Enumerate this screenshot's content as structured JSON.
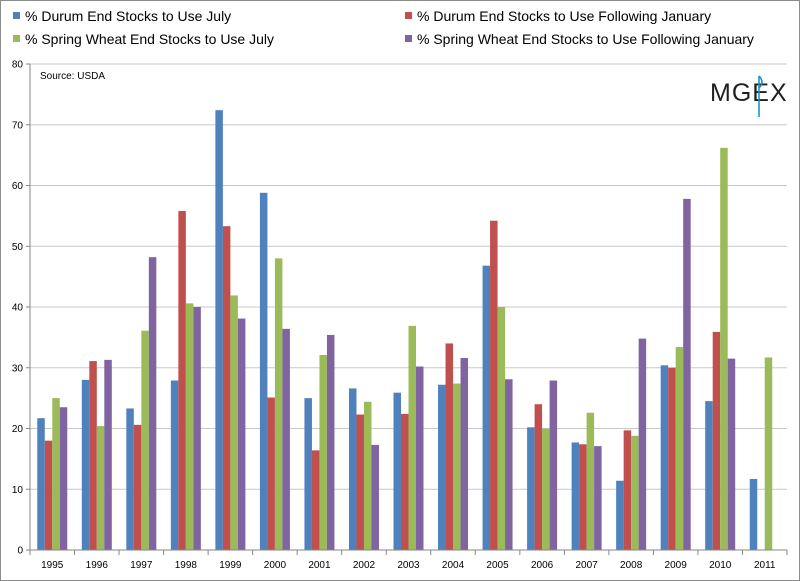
{
  "chart_data": {
    "type": "bar",
    "categories": [
      "1995",
      "1996",
      "1997",
      "1998",
      "1999",
      "2000",
      "2001",
      "2002",
      "2003",
      "2004",
      "2005",
      "2006",
      "2007",
      "2008",
      "2009",
      "2010",
      "2011"
    ],
    "series": [
      {
        "name": "% Durum End Stocks to Use July",
        "color": "#4f81bd",
        "values": [
          21.7,
          28.0,
          23.3,
          27.9,
          72.4,
          58.8,
          25.0,
          26.6,
          25.9,
          27.2,
          46.8,
          20.2,
          17.7,
          11.4,
          30.4,
          24.5,
          11.7
        ]
      },
      {
        "name": "% Durum End Stocks to Use Following January",
        "color": "#c0504d",
        "values": [
          18.0,
          31.1,
          20.6,
          55.8,
          53.3,
          25.1,
          16.4,
          22.3,
          22.4,
          34.0,
          54.2,
          24.0,
          17.4,
          19.7,
          30.0,
          35.9,
          null
        ]
      },
      {
        "name": "% Spring Wheat End Stocks to Use July",
        "color": "#9bbb59",
        "values": [
          25.0,
          20.4,
          36.1,
          40.6,
          41.9,
          48.0,
          32.1,
          24.4,
          36.9,
          27.4,
          40.0,
          20.0,
          22.6,
          18.8,
          33.4,
          66.2,
          31.7
        ]
      },
      {
        "name": "% Spring Wheat End Stocks to Use Following January",
        "color": "#8064a2",
        "values": [
          23.5,
          31.3,
          48.2,
          40.0,
          38.1,
          36.4,
          35.4,
          17.3,
          30.2,
          31.6,
          28.1,
          27.9,
          17.1,
          34.8,
          57.8,
          31.5,
          null
        ]
      }
    ],
    "ylim": [
      0,
      80
    ],
    "yticks": [
      0,
      10,
      20,
      30,
      40,
      50,
      60,
      70,
      80
    ],
    "grid": true,
    "legend_position": "top",
    "annotation": "Source: USDA"
  },
  "logo": {
    "text": "MGEX",
    "accent_color": "#0d8ec9"
  }
}
